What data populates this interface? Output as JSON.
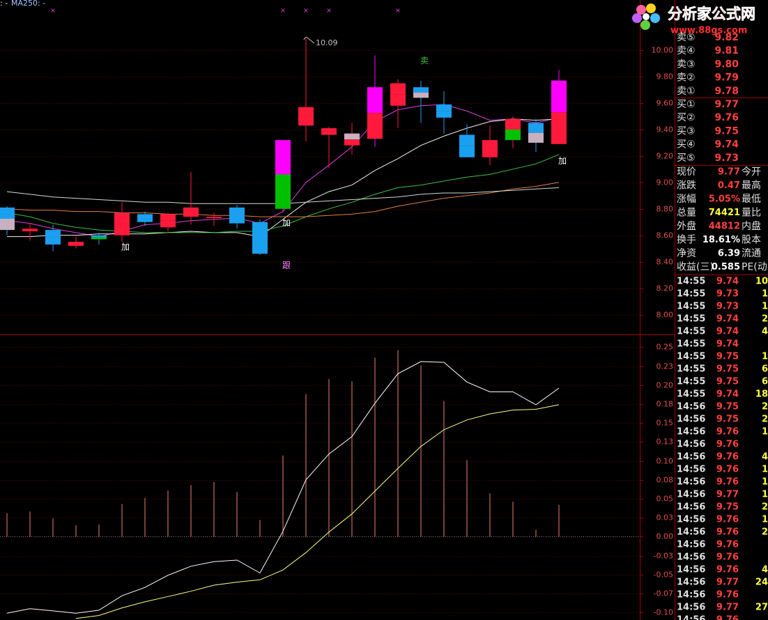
{
  "chart_data": [
    {
      "type": "candlestick",
      "legend_texts": [
        ": -",
        "MA250: -"
      ],
      "open": [
        8.81,
        8.63,
        8.64,
        8.52,
        8.6,
        8.6,
        8.76,
        8.66,
        8.74,
        8.73,
        8.81,
        8.7,
        8.8,
        9.43,
        9.36,
        9.28,
        9.33,
        9.58,
        9.72,
        9.59,
        9.36,
        9.19,
        9.32,
        9.45,
        9.29
      ],
      "high": [
        8.82,
        8.69,
        8.68,
        8.59,
        8.62,
        8.85,
        8.78,
        8.77,
        9.08,
        8.77,
        8.83,
        8.72,
        9.32,
        10.09,
        9.42,
        9.45,
        9.96,
        9.78,
        9.77,
        9.69,
        9.44,
        9.43,
        9.5,
        9.48,
        9.85
      ],
      "low": [
        8.6,
        8.56,
        8.48,
        8.5,
        8.53,
        8.55,
        8.67,
        8.63,
        8.68,
        8.67,
        8.65,
        8.45,
        8.78,
        9.31,
        9.11,
        9.21,
        9.27,
        9.41,
        9.45,
        9.37,
        9.19,
        9.13,
        9.26,
        9.23,
        9.29
      ],
      "close": [
        8.64,
        8.65,
        8.53,
        8.55,
        8.57,
        8.77,
        8.7,
        8.76,
        8.81,
        8.74,
        8.69,
        8.46,
        9.32,
        9.57,
        9.41,
        9.37,
        9.72,
        9.75,
        9.64,
        9.49,
        9.19,
        9.32,
        9.48,
        9.3,
        9.77
      ],
      "colors": [
        [
          "#1aa0f0",
          "#c8b0c0"
        ],
        [
          "#ff1a3c",
          "#ff1a3c"
        ],
        [
          "#1aa0f0",
          "#1aa0f0"
        ],
        [
          "#ff1a3c",
          "#ff1a3c"
        ],
        [
          "#1aa0f0",
          "#00c000"
        ],
        [
          "#ff1a3c",
          "#ff1a3c"
        ],
        [
          "#1aa0f0",
          "#1aa0f0"
        ],
        [
          "#ff1a3c",
          "#ff1a3c"
        ],
        [
          "#ff1a3c",
          "#ff1a3c"
        ],
        [
          "#ff1a3c",
          "#ff1a3c"
        ],
        [
          "#1aa0f0",
          "#1aa0f0"
        ],
        [
          "#1aa0f0",
          "#1aa0f0"
        ],
        [
          "#ff00ff",
          "#00c000"
        ],
        [
          "#ff1a3c",
          "#ff1a3c"
        ],
        [
          "#ff1a3c",
          "#ff1a3c"
        ],
        [
          "#c8b0c0",
          "#ff1a3c"
        ],
        [
          "#ff00ff",
          "#ff1a3c"
        ],
        [
          "#ff1a3c",
          "#ff1a3c"
        ],
        [
          "#1aa0f0",
          "#c8b0c0"
        ],
        [
          "#1aa0f0",
          "#1aa0f0"
        ],
        [
          "#1aa0f0",
          "#1aa0f0"
        ],
        [
          "#ff1a3c",
          "#ff1a3c"
        ],
        [
          "#ff1a3c",
          "#00c000"
        ],
        [
          "#1aa0f0",
          "#c8b0c0"
        ],
        [
          "#ff00ff",
          "#ff1a3c"
        ]
      ],
      "series": [
        {
          "color": "#e040e0",
          "values": [
            8.71,
            8.69,
            8.65,
            8.62,
            8.59,
            8.63,
            8.68,
            8.69,
            8.71,
            8.72,
            8.73,
            8.69,
            8.78,
            9.0,
            9.13,
            9.27,
            9.46,
            9.55,
            9.58,
            9.59,
            9.54,
            9.47,
            9.48,
            9.45,
            9.49
          ]
        },
        {
          "color": "#f0f0f0",
          "values": [
            8.59,
            8.59,
            8.6,
            8.6,
            8.61,
            8.61,
            8.61,
            8.62,
            8.63,
            8.62,
            8.62,
            8.59,
            8.72,
            8.85,
            8.93,
            8.98,
            9.09,
            9.18,
            9.28,
            9.35,
            9.41,
            9.46,
            9.48,
            9.47,
            9.48
          ]
        },
        {
          "color": "#40c040",
          "values": [
            8.77,
            8.74,
            8.69,
            8.66,
            8.64,
            8.63,
            8.62,
            8.62,
            8.62,
            8.62,
            8.63,
            8.63,
            8.67,
            8.74,
            8.8,
            8.85,
            8.91,
            8.96,
            8.98,
            9.01,
            9.04,
            9.06,
            9.1,
            9.14,
            9.21
          ]
        },
        {
          "color": "#e08040",
          "values": [
            8.8,
            8.79,
            8.79,
            8.78,
            8.78,
            8.77,
            8.77,
            8.76,
            8.76,
            8.75,
            8.75,
            8.74,
            8.74,
            8.74,
            8.75,
            8.76,
            8.78,
            8.82,
            8.85,
            8.88,
            8.9,
            8.92,
            8.95,
            8.97,
            9.0
          ]
        },
        {
          "color": "#d8d8d8",
          "values": [
            8.93,
            8.91,
            8.89,
            8.88,
            8.87,
            8.86,
            8.85,
            8.85,
            8.84,
            8.84,
            8.84,
            8.84,
            8.84,
            8.85,
            8.86,
            8.87,
            8.88,
            8.89,
            8.91,
            8.92,
            8.92,
            8.93,
            8.94,
            8.95,
            8.96
          ]
        }
      ],
      "annotations": [
        {
          "text": "加",
          "index": 5,
          "price": 8.51,
          "color": "#ffffff"
        },
        {
          "text": "加",
          "index": 12,
          "price": 8.69,
          "color": "#ffffff"
        },
        {
          "text": "跟",
          "index": 12,
          "price": 8.37,
          "color": "#ff80ff"
        },
        {
          "text": "卖",
          "index": 18,
          "price": 9.92,
          "color": "#40c040"
        },
        {
          "text": "加",
          "index": 24,
          "price": 9.16,
          "color": "#ffffff"
        }
      ],
      "signal_marker": "×",
      "signal_indices": [
        2,
        12,
        13,
        14,
        17
      ],
      "signal_color": "#d040d0",
      "label_max": true,
      "ylim": [
        7.85,
        10.38
      ],
      "yticks": [
        {
          "value": 10,
          "label": "10.00"
        },
        {
          "value": 9.8,
          "label": "9.80"
        },
        {
          "value": 9.6,
          "label": "9.60"
        },
        {
          "value": 9.4,
          "label": "9.40"
        },
        {
          "value": 9.2,
          "label": "9.20"
        },
        {
          "value": 9,
          "label": "9.00"
        },
        {
          "value": 8.8,
          "label": "8.80"
        },
        {
          "value": 8.6,
          "label": "8.60"
        },
        {
          "value": 8.4,
          "label": "8.40"
        },
        {
          "value": 8.2,
          "label": "8.20"
        },
        {
          "value": 8,
          "label": "8.00"
        }
      ],
      "grid": true
    },
    {
      "type": "macd",
      "bars": [
        0.031,
        0.033,
        0.024,
        0.015,
        0.016,
        0.043,
        0.051,
        0.061,
        0.068,
        0.072,
        0.059,
        0.022,
        0.107,
        0.188,
        0.208,
        0.205,
        0.236,
        0.246,
        0.226,
        0.179,
        0.101,
        0.057,
        0.046,
        0.009,
        0.042
      ],
      "bar_color": "#f08070",
      "series": [
        {
          "color": "#ffffff",
          "values": [
            -0.101,
            -0.095,
            -0.098,
            -0.101,
            -0.097,
            -0.078,
            -0.067,
            -0.051,
            -0.039,
            -0.033,
            -0.031,
            -0.048,
            0.007,
            0.075,
            0.109,
            0.132,
            0.176,
            0.215,
            0.231,
            0.23,
            0.204,
            0.191,
            0.191,
            0.174,
            0.196
          ]
        },
        {
          "color": "#ffff80",
          "values": [
            null,
            null,
            null,
            -0.108,
            -0.104,
            -0.094,
            -0.086,
            -0.079,
            -0.072,
            -0.064,
            -0.06,
            -0.057,
            -0.044,
            -0.021,
            0.006,
            0.03,
            0.06,
            0.09,
            0.119,
            0.141,
            0.154,
            0.162,
            0.167,
            0.168,
            0.174
          ]
        }
      ],
      "ylim": [
        -0.11,
        0.265
      ],
      "yticks": [
        0.25,
        {
          "value": 0.225,
          "label": "0.23"
        },
        {
          "value": 0.2,
          "label": "0.20"
        },
        {
          "value": 0.175,
          "label": "0.18"
        },
        0.15,
        {
          "value": 0.125,
          "label": "0.13"
        },
        {
          "value": 0.1,
          "label": "0.10"
        },
        {
          "value": 0.075,
          "label": "0.08"
        },
        0.05,
        {
          "value": 0.025,
          "label": "0.03"
        },
        {
          "value": 0,
          "label": "0.00"
        },
        {
          "value": -0.025,
          "label": "-0.03"
        },
        -0.05,
        {
          "value": -0.075,
          "label": "-0.07"
        },
        {
          "value": -0.1,
          "label": "-0.10"
        }
      ],
      "grid": true
    }
  ],
  "logo": {
    "title": "分析家公式网",
    "url": "www.88gs.com"
  },
  "order_book": {
    "sell": [
      [
        "卖⑤",
        "9.82"
      ],
      [
        "卖④",
        "9.81"
      ],
      [
        "卖③",
        "9.80"
      ],
      [
        "卖②",
        "9.79"
      ],
      [
        "卖①",
        "9.78"
      ]
    ],
    "buy": [
      [
        "买①",
        "9.77"
      ],
      [
        "买②",
        "9.76"
      ],
      [
        "买③",
        "9.75"
      ],
      [
        "买④",
        "9.74"
      ],
      [
        "买⑤",
        "9.73"
      ]
    ]
  },
  "quote": {
    "rows": [
      [
        "现价",
        "9.77",
        "今开"
      ],
      [
        "涨跌",
        "0.47",
        "最高"
      ],
      [
        "涨幅",
        "5.05%",
        "最低"
      ],
      [
        "总量",
        "74421",
        "量比"
      ],
      [
        "外盘",
        "44812",
        "内盘"
      ],
      [
        "换手",
        "18.61%",
        "股本"
      ],
      [
        "净资",
        "6.39",
        "流通"
      ],
      [
        "收益(三)",
        "0.585",
        "PE(动"
      ]
    ],
    "colors": [
      "#ff4040",
      "#ff4040",
      "#ff4040",
      "#ffff40",
      "#ff4040",
      "#ffffff",
      "#ffffff",
      "#ffffff"
    ]
  },
  "ticks": [
    [
      "14:55",
      "9.74",
      "10"
    ],
    [
      "14:55",
      "9.73",
      "1"
    ],
    [
      "14:55",
      "9.73",
      "1"
    ],
    [
      "14:55",
      "9.74",
      "2"
    ],
    [
      "14:55",
      "9.74",
      "4"
    ],
    [
      "14:55",
      "9.74"
    ],
    [
      "14:55",
      "9.75",
      "1"
    ],
    [
      "14:55",
      "9.75",
      "6"
    ],
    [
      "14:55",
      "9.75",
      "6"
    ],
    [
      "14:55",
      "9.74",
      "18"
    ],
    [
      "14:56",
      "9.75",
      "2"
    ],
    [
      "14:56",
      "9.75",
      "2"
    ],
    [
      "14:56",
      "9.76",
      "1"
    ],
    [
      "14:56",
      "9.76"
    ],
    [
      "14:56",
      "9.76",
      "4"
    ],
    [
      "14:56",
      "9.76",
      "1"
    ],
    [
      "14:56",
      "9.76",
      "1"
    ],
    [
      "14:56",
      "9.77",
      "1"
    ],
    [
      "14:56",
      "9.75",
      "2"
    ],
    [
      "14:56",
      "9.76",
      "1"
    ],
    [
      "14:56",
      "9.76",
      "2"
    ],
    [
      "14:56",
      "9.76"
    ],
    [
      "14:56",
      "9.76"
    ],
    [
      "14:56",
      "9.76",
      "4"
    ],
    [
      "14:56",
      "9.77",
      "24"
    ],
    [
      "14:56",
      "9.76"
    ],
    [
      "14:56",
      "9.77",
      "27"
    ],
    [
      "14:56",
      "9.76"
    ]
  ]
}
